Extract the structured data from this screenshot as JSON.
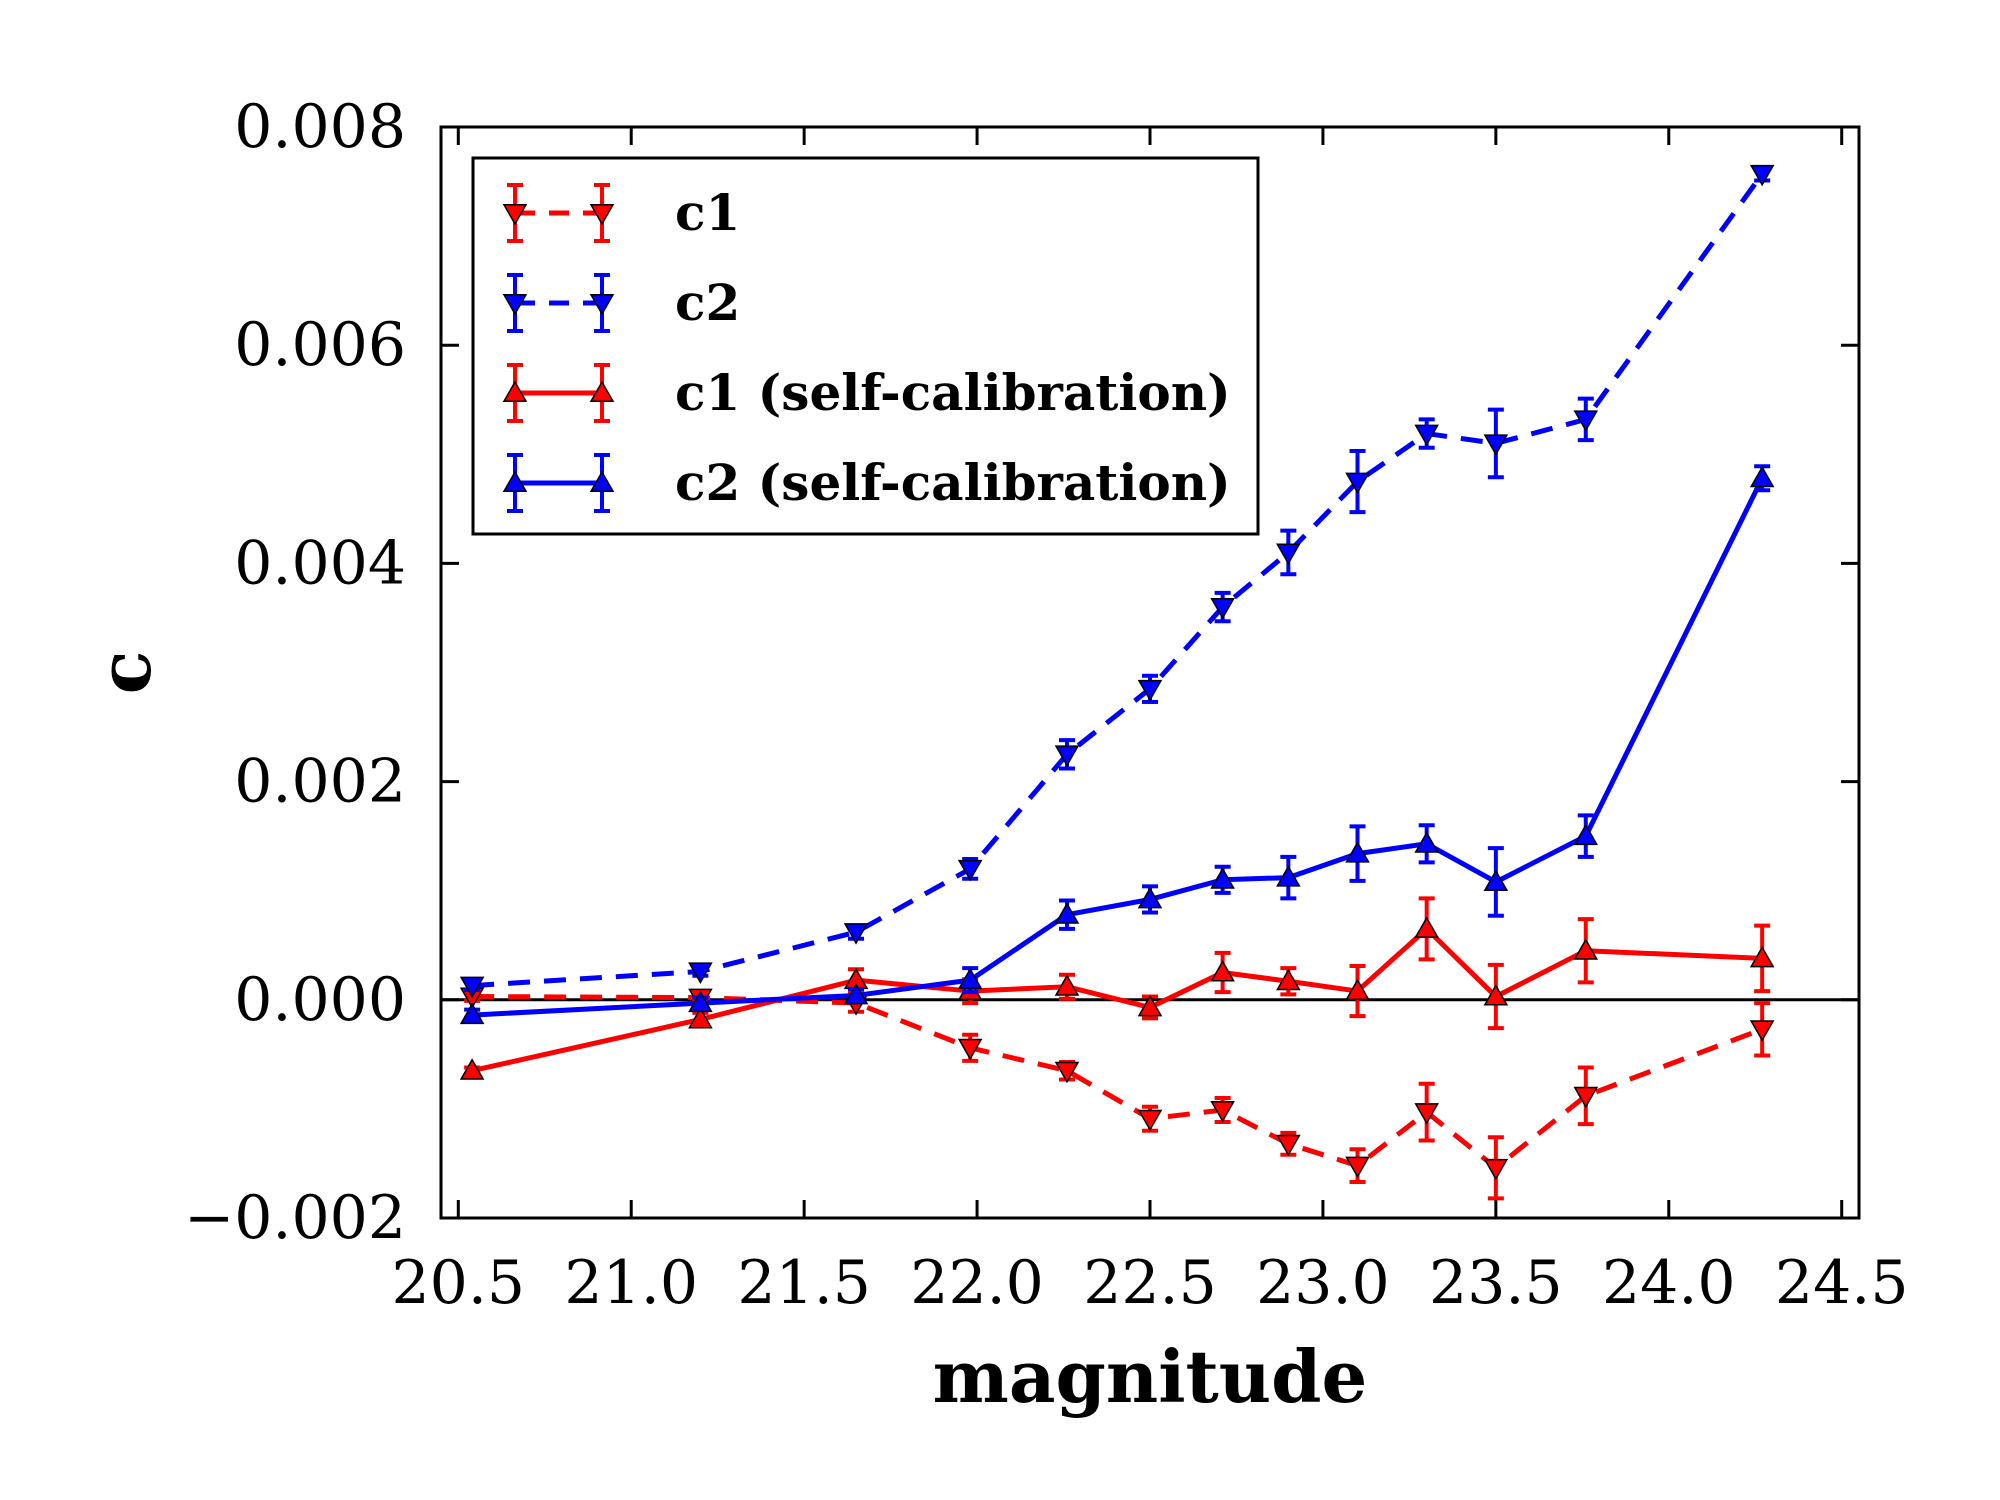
{
  "chart_data": {
    "type": "line",
    "title": "",
    "xlabel": "magnitude",
    "ylabel": "c",
    "xlim": [
      20.45,
      24.55
    ],
    "ylim": [
      -0.002,
      0.008
    ],
    "xticks": [
      20.5,
      21.0,
      21.5,
      22.0,
      22.5,
      23.0,
      23.5,
      24.0,
      24.5
    ],
    "xtick_labels": [
      "20.5",
      "21.0",
      "21.5",
      "22.0",
      "22.5",
      "23.0",
      "23.5",
      "24.0",
      "24.5"
    ],
    "yticks": [
      -0.002,
      0.0,
      0.002,
      0.004,
      0.006,
      0.008
    ],
    "ytick_labels": [
      "−0.002",
      "0.000",
      "0.002",
      "0.004",
      "0.006",
      "0.008"
    ],
    "zero_line": true,
    "grid": false,
    "legend_position": "top-left",
    "x": [
      20.54,
      21.2,
      21.65,
      21.98,
      22.26,
      22.5,
      22.71,
      22.9,
      23.1,
      23.3,
      23.5,
      23.76,
      24.27
    ],
    "series": [
      {
        "name": "c1",
        "color": "#ff0000",
        "line_style": "dashed",
        "marker": "triangle-down",
        "values": [
          3e-05,
          2e-05,
          -3e-05,
          -0.00044,
          -0.00065,
          -0.00109,
          -0.00101,
          -0.00132,
          -0.00152,
          -0.00103,
          -0.00154,
          -0.00088,
          -0.00027
        ],
        "errors": [
          4e-05,
          3e-05,
          8e-05,
          0.00012,
          8e-05,
          0.00011,
          0.00011,
          0.0001,
          0.00015,
          0.00026,
          0.00028,
          0.00026,
          0.00024
        ]
      },
      {
        "name": "c2",
        "color": "#0000ff",
        "line_style": "dashed",
        "marker": "triangle-down",
        "values": [
          0.00013,
          0.00026,
          0.00062,
          0.0012,
          0.00225,
          0.00285,
          0.0036,
          0.0041,
          0.00475,
          0.00519,
          0.0051,
          0.00532,
          0.00757
        ],
        "errors": [
          4e-05,
          4e-05,
          6e-05,
          9e-05,
          0.00013,
          0.00012,
          0.00013,
          0.0002,
          0.00028,
          0.00013,
          0.00031,
          0.00019,
          6e-05
        ]
      },
      {
        "name": "c1 (self-calibration)",
        "color": "#ff0000",
        "line_style": "solid",
        "marker": "triangle-up",
        "values": [
          -0.00065,
          -0.00018,
          0.00018,
          8e-05,
          0.00012,
          -7e-05,
          0.00025,
          0.00017,
          8e-05,
          0.00065,
          3e-05,
          0.00045,
          0.00038
        ],
        "errors": [
          3e-05,
          6e-05,
          0.0001,
          0.00011,
          0.00011,
          0.0001,
          0.00018,
          0.00012,
          0.00023,
          0.00028,
          0.00029,
          0.00029,
          0.0003
        ]
      },
      {
        "name": "c2 (self-calibration)",
        "color": "#0000ff",
        "line_style": "solid",
        "marker": "triangle-up",
        "values": [
          -0.00014,
          -3e-05,
          4e-05,
          0.00018,
          0.00078,
          0.00092,
          0.0011,
          0.00112,
          0.00134,
          0.00143,
          0.00108,
          0.0015,
          0.00478
        ],
        "errors": [
          5e-05,
          5e-05,
          6e-05,
          0.00011,
          0.00013,
          0.00012,
          0.00012,
          0.00019,
          0.00025,
          0.00017,
          0.00031,
          0.00019,
          0.00011
        ]
      }
    ]
  }
}
